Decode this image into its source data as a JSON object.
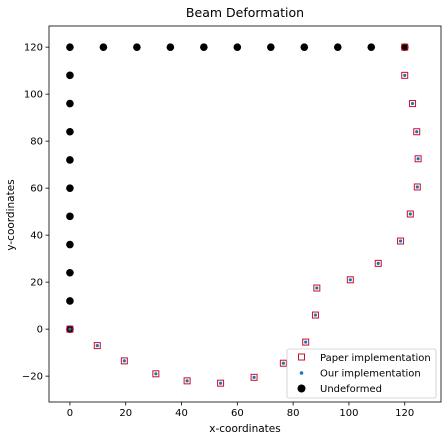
{
  "chart_data": {
    "type": "scatter",
    "title": "Beam Deformation",
    "xlabel": "x-coordinates",
    "ylabel": "y-coordinates",
    "xlim": [
      -7.5,
      133
    ],
    "ylim": [
      -31,
      129
    ],
    "xticks": [
      0,
      20,
      40,
      60,
      80,
      100,
      120
    ],
    "yticks": [
      -20,
      0,
      20,
      40,
      60,
      80,
      100,
      120
    ],
    "grid": false,
    "legend_position": "lower-right",
    "series": [
      {
        "name": "Paper implementation",
        "marker": "square-open",
        "color": "#c8102e",
        "x": [
          0,
          9.8,
          19.5,
          30.8,
          42,
          54,
          66,
          76.5,
          84.5,
          88,
          88.5,
          100.5,
          110.5,
          118.5,
          122,
          124.5,
          124.8,
          124.3,
          122.8,
          120
        ],
        "y": [
          0,
          -7,
          -13.5,
          -19,
          -22,
          -23,
          -20.5,
          -14.5,
          -5.5,
          6,
          17.5,
          21,
          28,
          37.5,
          49,
          60.5,
          72.5,
          84,
          96,
          108
        ]
      },
      {
        "name": "Our implementation",
        "marker": "dot",
        "color": "#1f77b4",
        "x": [
          0,
          9.8,
          19.5,
          30.8,
          42,
          54,
          66,
          76.5,
          84.5,
          88,
          88.5,
          100.5,
          110.5,
          118.5,
          122,
          124.5,
          124.8,
          124.3,
          122.8,
          120
        ],
        "y": [
          0,
          -7,
          -13.5,
          -19,
          -22,
          -23,
          -20.5,
          -14.5,
          -5.5,
          6,
          17.5,
          21,
          28,
          37.5,
          49,
          60.5,
          72.5,
          84,
          96,
          108
        ]
      },
      {
        "name": "Undeformed",
        "marker": "circle",
        "color": "#000000",
        "x": [
          0,
          0,
          0,
          0,
          0,
          0,
          0,
          0,
          0,
          0,
          0,
          12,
          24,
          36,
          48,
          60,
          72,
          84,
          96,
          108,
          120
        ],
        "y": [
          0,
          12,
          24,
          36,
          48,
          60,
          72,
          84,
          96,
          108,
          120,
          120,
          120,
          120,
          120,
          120,
          120,
          120,
          120,
          120,
          120
        ]
      }
    ],
    "extra_points": [
      {
        "series": "Paper implementation",
        "x": 120,
        "y": 120
      }
    ]
  }
}
